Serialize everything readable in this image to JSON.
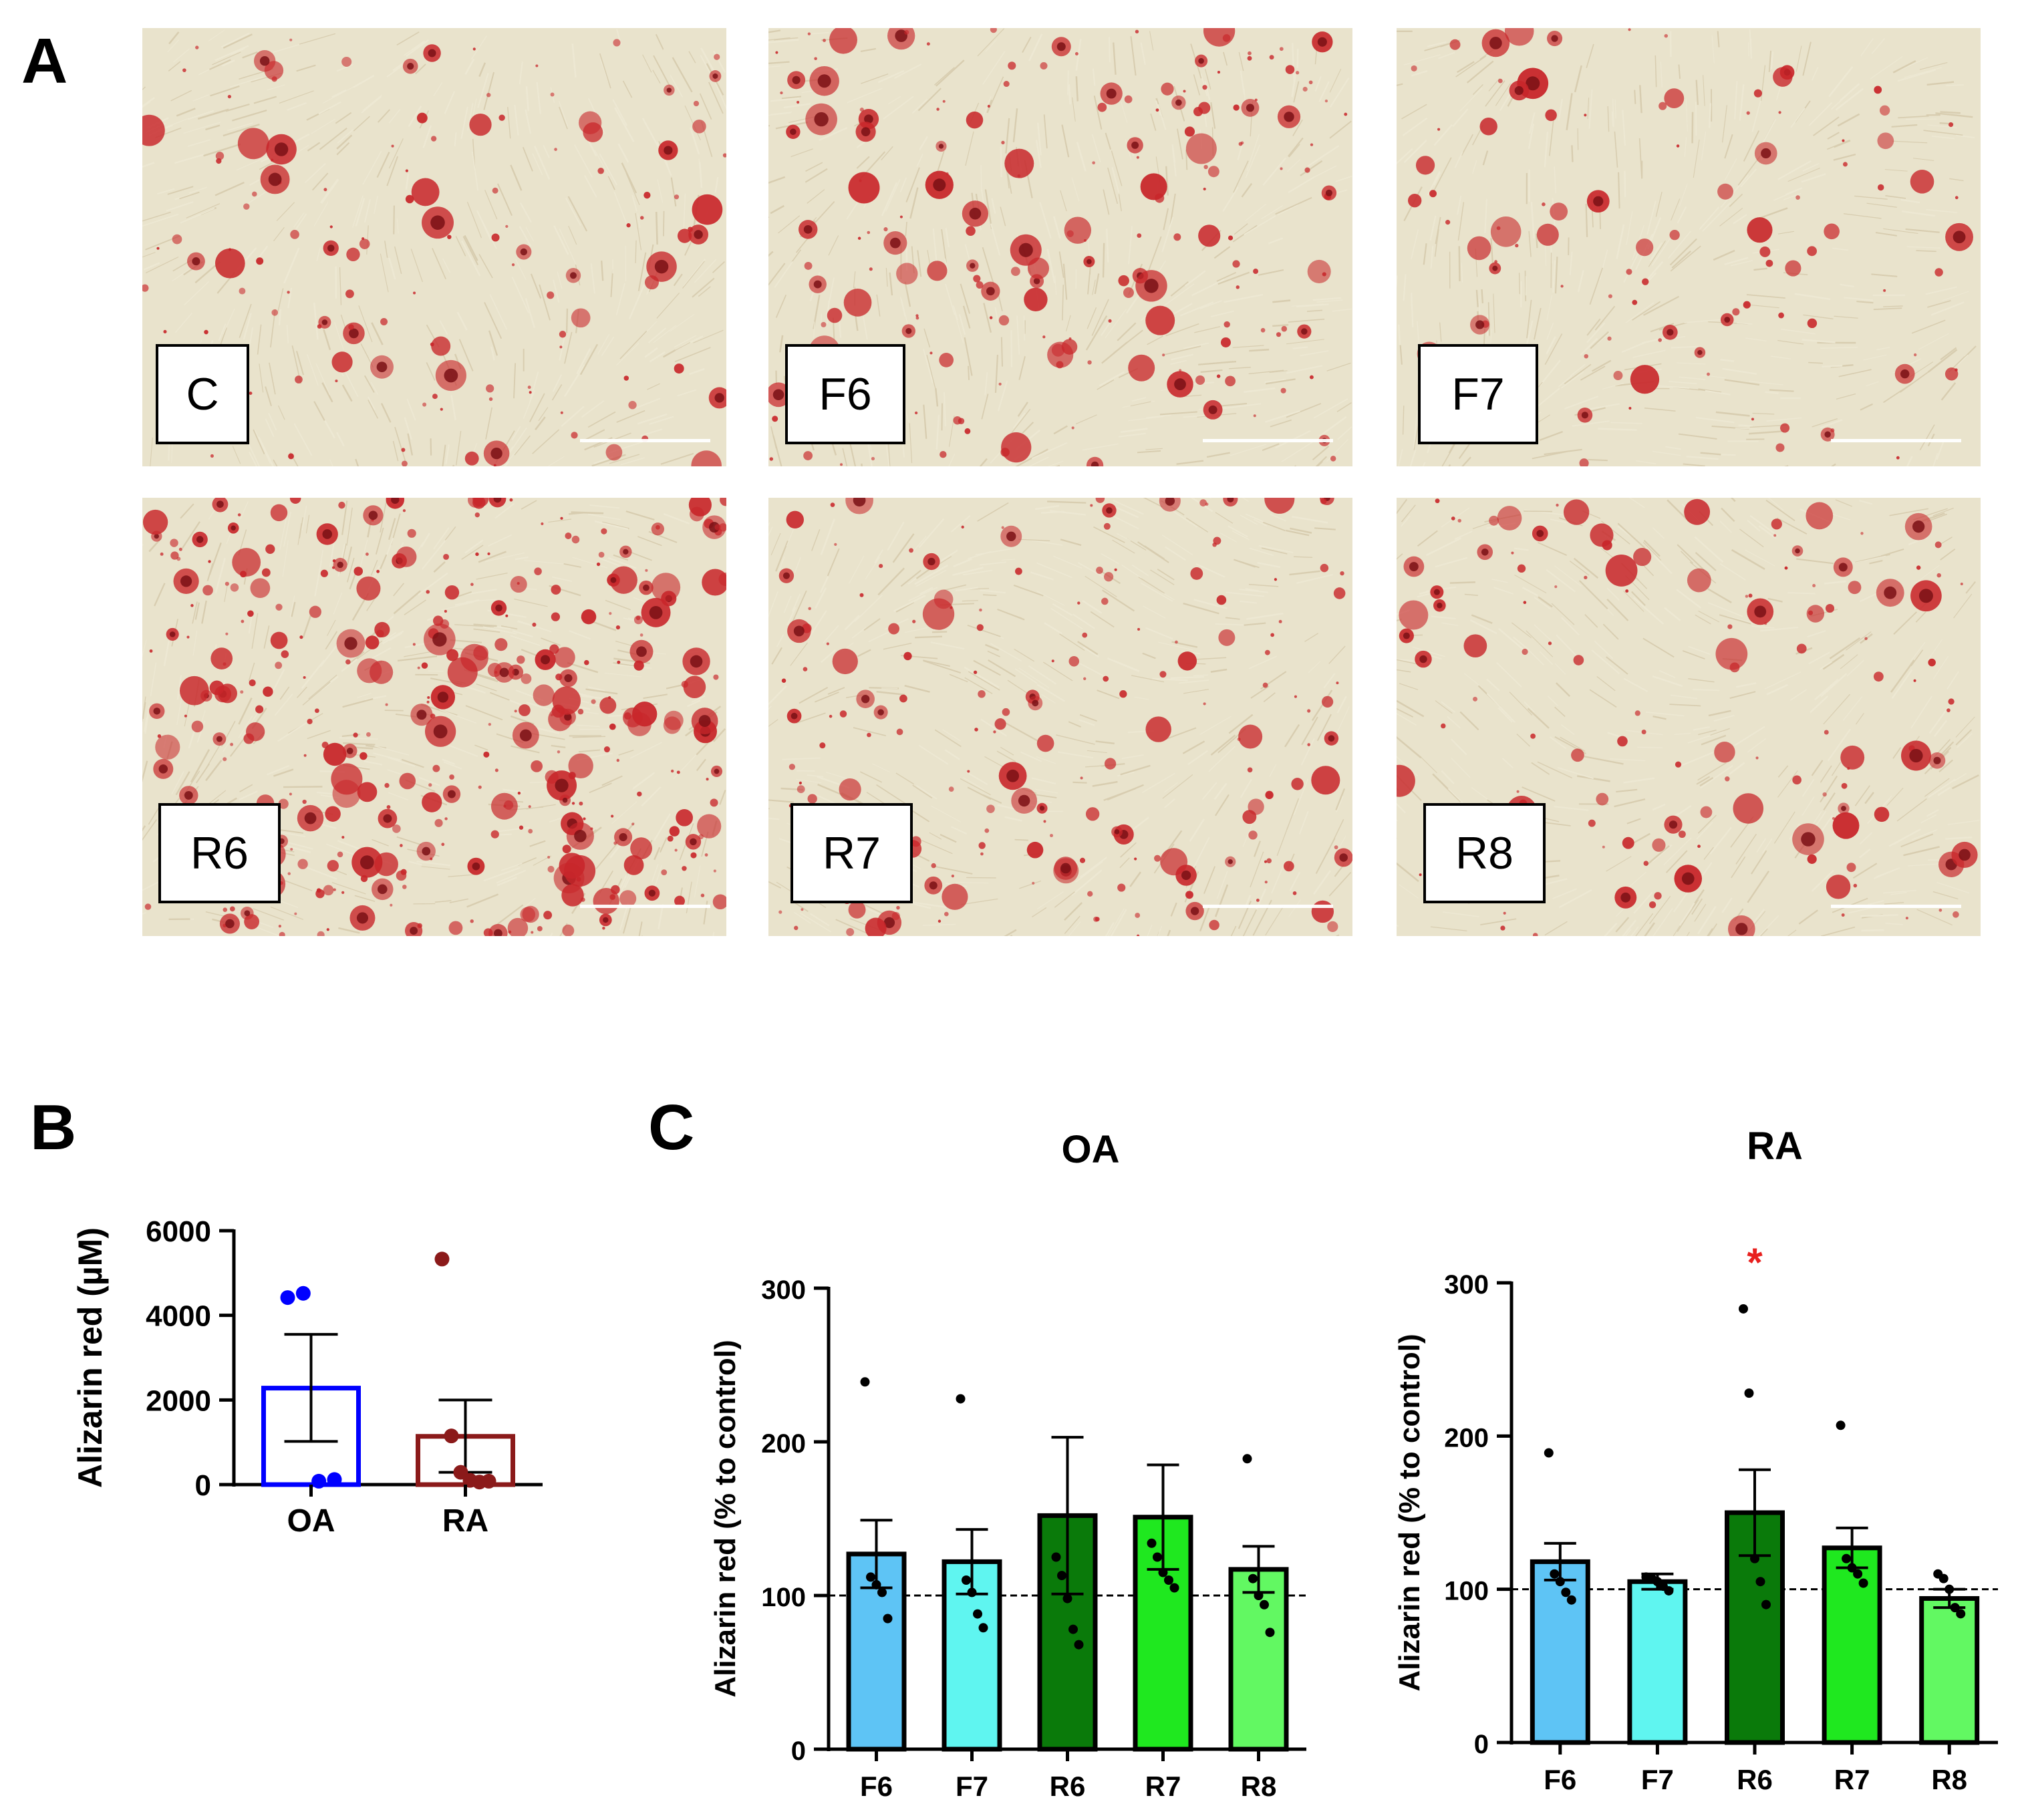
{
  "panel_letters": {
    "a": "A",
    "b": "B",
    "c": "C"
  },
  "micrographs": [
    {
      "label": "C",
      "stain_density": 0.9
    },
    {
      "label": "F6",
      "stain_density": 1.3
    },
    {
      "label": "F7",
      "stain_density": 0.7
    },
    {
      "label": "R6",
      "stain_density": 2.6
    },
    {
      "label": "R7",
      "stain_density": 1.3
    },
    {
      "label": "R8",
      "stain_density": 0.9
    }
  ],
  "colors": {
    "background_tissue": "#e9e3cc",
    "stain": "#c8262a",
    "stain_dark": "#7a1115",
    "oa_bar": "#0000ff",
    "ra_bar": "#8b1a1a",
    "F6": "#5ec4f5",
    "F7": "#5ff5f0",
    "R6": "#0a7a0a",
    "R7": "#1fe81f",
    "R8": "#62f862",
    "significance": "#e8201e"
  },
  "chart_data": [
    {
      "type": "bar",
      "panel": "B",
      "title": "",
      "xlabel": "",
      "ylabel": "Alizarin red (µM)",
      "categories": [
        "OA",
        "RA"
      ],
      "values": [
        2280,
        1140
      ],
      "error_upper": [
        3550,
        2000
      ],
      "error_lower": [
        1020,
        290
      ],
      "points": [
        [
          4420,
          4520,
          80,
          120
        ],
        [
          5330,
          1150,
          290,
          100,
          60,
          80
        ]
      ],
      "ylim": [
        0,
        6000
      ],
      "yticks": [
        "0",
        "2000",
        "4000",
        "6000"
      ],
      "bar_style": "open"
    },
    {
      "type": "bar",
      "panel": "C",
      "title": "OA",
      "xlabel": "",
      "ylabel": "Alizarin red (% to control)",
      "categories": [
        "F6",
        "F7",
        "R6",
        "R7",
        "R8"
      ],
      "values": [
        127,
        122,
        152,
        151,
        117
      ],
      "error_upper": [
        149,
        143,
        203,
        185,
        132
      ],
      "error_lower": [
        105,
        101,
        101,
        117,
        102
      ],
      "points": [
        [
          239,
          112,
          107,
          102,
          85
        ],
        [
          228,
          110,
          102,
          88,
          79
        ],
        [
          125,
          113,
          98,
          78,
          68
        ],
        [
          134,
          125,
          115,
          110,
          105
        ],
        [
          189,
          111,
          100,
          94,
          76
        ]
      ],
      "reference_line": 100,
      "ylim": [
        0,
        300
      ],
      "yticks": [
        "0",
        "100",
        "200",
        "300"
      ]
    },
    {
      "type": "bar",
      "panel": "C",
      "title": "RA",
      "xlabel": "",
      "ylabel": "Alizarin red (% to control)",
      "categories": [
        "F6",
        "F7",
        "R6",
        "R7",
        "R8"
      ],
      "values": [
        118,
        105,
        150,
        127,
        94
      ],
      "error_upper": [
        130,
        110,
        178,
        140,
        100
      ],
      "error_lower": [
        106,
        100,
        122,
        114,
        88
      ],
      "points": [
        [
          189,
          110,
          105,
          98,
          93
        ],
        [
          108,
          107,
          105,
          102,
          99
        ],
        [
          283,
          228,
          120,
          105,
          90
        ],
        [
          207,
          120,
          114,
          110,
          104
        ],
        [
          110,
          107,
          100,
          88,
          84
        ]
      ],
      "reference_line": 100,
      "significance": {
        "category": "R6",
        "mark": "*"
      },
      "ylim": [
        0,
        300
      ],
      "yticks": [
        "0",
        "100",
        "200",
        "300"
      ]
    }
  ]
}
